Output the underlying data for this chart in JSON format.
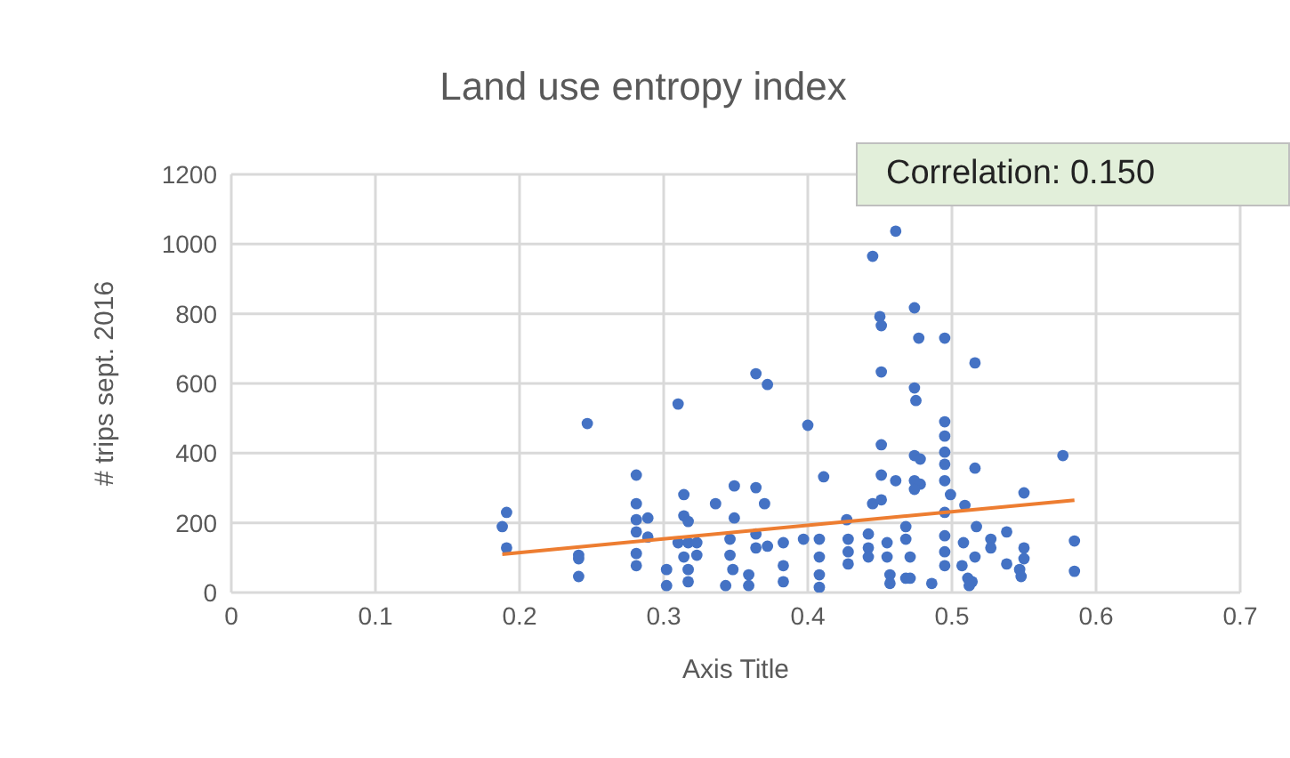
{
  "chart_data": {
    "type": "scatter",
    "title": "Land use entropy index",
    "xlabel": "Axis Title",
    "ylabel": "# trips sept. 2016",
    "annotations": [
      "Correlation: 0.150"
    ],
    "xlim": [
      0,
      0.7
    ],
    "xticks": [
      0,
      0.1,
      0.2,
      0.3,
      0.4,
      0.5,
      0.6,
      0.7
    ],
    "ylim": [
      0,
      1200
    ],
    "yticks": [
      0,
      200,
      400,
      600,
      800,
      1000,
      1200
    ],
    "grid": true,
    "legend": false,
    "series": [
      {
        "type": "scatter",
        "color": "#4472c4",
        "marker": "circle",
        "x": [
          0.191,
          0.188,
          0.191,
          0.241,
          0.241,
          0.241,
          0.247,
          0.281,
          0.281,
          0.281,
          0.289,
          0.281,
          0.289,
          0.281,
          0.281,
          0.302,
          0.302,
          0.31,
          0.314,
          0.314,
          0.317,
          0.31,
          0.317,
          0.323,
          0.314,
          0.323,
          0.317,
          0.317,
          0.336,
          0.349,
          0.349,
          0.346,
          0.346,
          0.348,
          0.343,
          0.359,
          0.359,
          0.364,
          0.372,
          0.364,
          0.37,
          0.364,
          0.364,
          0.372,
          0.383,
          0.383,
          0.383,
          0.4,
          0.411,
          0.397,
          0.408,
          0.408,
          0.408,
          0.408,
          0.461,
          0.445,
          0.45,
          0.451,
          0.451,
          0.474,
          0.477,
          0.495,
          0.516,
          0.474,
          0.475,
          0.451,
          0.451,
          0.445,
          0.451,
          0.474,
          0.478,
          0.474,
          0.478,
          0.474,
          0.461,
          0.495,
          0.495,
          0.495,
          0.495,
          0.495,
          0.499,
          0.495,
          0.516,
          0.509,
          0.427,
          0.428,
          0.428,
          0.428,
          0.442,
          0.442,
          0.442,
          0.455,
          0.455,
          0.457,
          0.457,
          0.468,
          0.468,
          0.471,
          0.468,
          0.471,
          0.486,
          0.495,
          0.495,
          0.495,
          0.508,
          0.507,
          0.511,
          0.514,
          0.517,
          0.516,
          0.577,
          0.55,
          0.527,
          0.527,
          0.538,
          0.55,
          0.55,
          0.538,
          0.547,
          0.548,
          0.585,
          0.585,
          0.512
        ],
        "values": [
          230,
          189,
          128,
          107,
          97,
          46,
          485,
          337,
          255,
          209,
          214,
          174,
          159,
          112,
          77,
          66,
          20,
          541,
          281,
          220,
          204,
          143,
          143,
          143,
          102,
          107,
          66,
          31,
          255,
          306,
          214,
          153,
          107,
          66,
          20,
          51,
          20,
          628,
          597,
          301,
          255,
          168,
          128,
          133,
          143,
          77,
          31,
          480,
          332,
          153,
          153,
          102,
          51,
          15,
          1037,
          965,
          792,
          766,
          633,
          817,
          730,
          730,
          659,
          587,
          551,
          424,
          337,
          255,
          266,
          393,
          383,
          321,
          311,
          296,
          321,
          490,
          449,
          403,
          368,
          321,
          281,
          230,
          357,
          250,
          209,
          153,
          117,
          82,
          168,
          128,
          102,
          143,
          102,
          51,
          26,
          189,
          153,
          102,
          41,
          41,
          26,
          163,
          117,
          77,
          143,
          77,
          41,
          31,
          189,
          102,
          393,
          286,
          153,
          128,
          174,
          128,
          97,
          82,
          66,
          46,
          148,
          61,
          20
        ]
      },
      {
        "type": "line",
        "color": "#ed7d31",
        "marker": "none",
        "line_style": "solid",
        "x": [
          0.188,
          0.585
        ],
        "values": [
          110,
          265
        ]
      }
    ]
  }
}
